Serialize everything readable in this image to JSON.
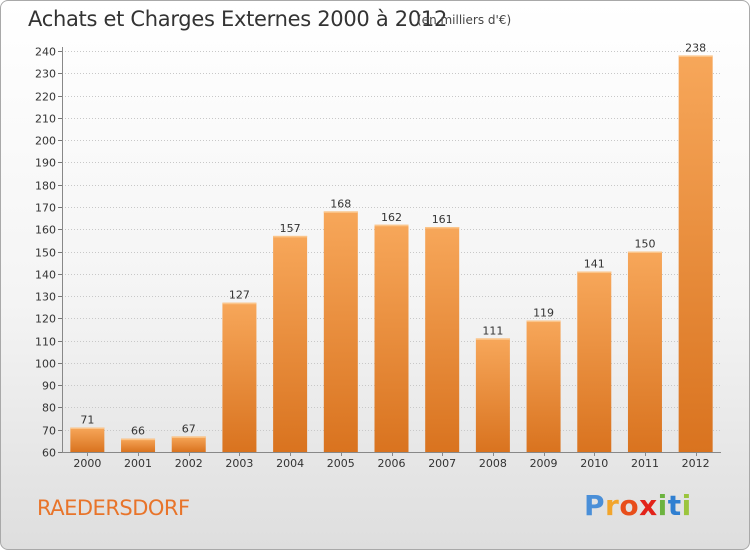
{
  "header": {
    "title": "Achats et Charges Externes 2000 à 2012",
    "subtitle": "(en milliers d'€)"
  },
  "footer": {
    "commune": "RAEDERSDORF",
    "logo": "Proxiti"
  },
  "colors": {
    "bar_light": "#f7a75a",
    "bar_dark": "#d9731f",
    "commune_text": "#e8742a"
  },
  "chart_data": {
    "type": "bar",
    "title": "Achats et Charges Externes 2000 à 2012",
    "subtitle": "(en milliers d'€)",
    "categories": [
      "2000",
      "2001",
      "2002",
      "2003",
      "2004",
      "2005",
      "2006",
      "2007",
      "2008",
      "2009",
      "2010",
      "2011",
      "2012"
    ],
    "values": [
      71,
      66,
      67,
      127,
      157,
      168,
      162,
      161,
      111,
      119,
      141,
      150,
      238
    ],
    "ylim": [
      60,
      240
    ],
    "yticks": [
      60,
      70,
      80,
      90,
      100,
      110,
      120,
      130,
      140,
      150,
      160,
      170,
      180,
      190,
      200,
      210,
      220,
      230,
      240
    ],
    "grid": true,
    "legend": "none"
  }
}
